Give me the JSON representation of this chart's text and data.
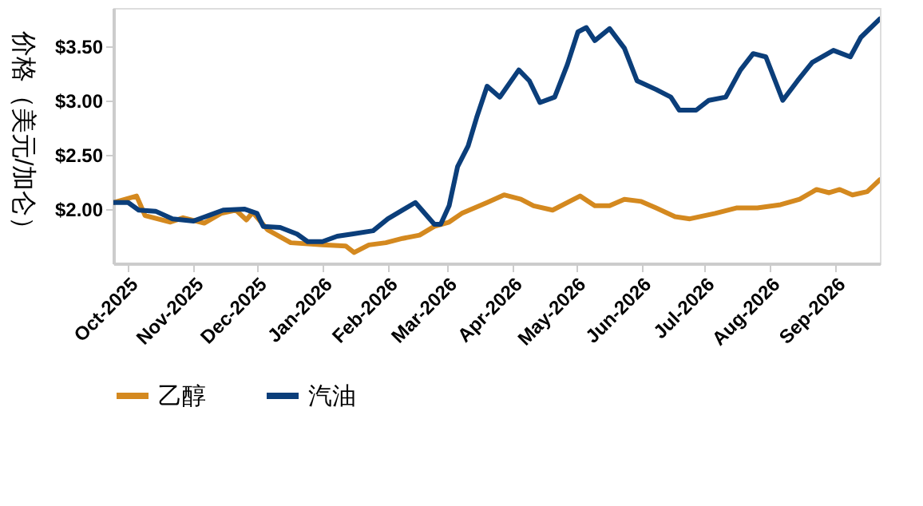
{
  "chart_data": {
    "type": "line",
    "ylabel": "价格（美元/加仑）",
    "xlim": [
      "2025-09-24",
      "2026-09-22"
    ],
    "ylim": [
      1.5,
      3.85
    ],
    "yticks": [
      {
        "value": 2,
        "label": "$2.00"
      },
      {
        "value": 2.5,
        "label": "$2.50"
      },
      {
        "value": 3,
        "label": "$3.00"
      },
      {
        "value": 3.5,
        "label": "$3.50"
      }
    ],
    "xticks": [
      {
        "value": "2025-10-01",
        "label": "Oct-2025"
      },
      {
        "value": "2025-11-01",
        "label": "Nov-2025"
      },
      {
        "value": "2025-12-01",
        "label": "Dec-2025"
      },
      {
        "value": "2026-01-01",
        "label": "Jan-2026"
      },
      {
        "value": "2026-02-01",
        "label": "Feb-2026"
      },
      {
        "value": "2026-03-01",
        "label": "Mar-2026"
      },
      {
        "value": "2026-04-01",
        "label": "Apr-2026"
      },
      {
        "value": "2026-05-01",
        "label": "May-2026"
      },
      {
        "value": "2026-06-01",
        "label": "Jun-2026"
      },
      {
        "value": "2026-07-01",
        "label": "Jul-2026"
      },
      {
        "value": "2026-08-01",
        "label": "Aug-2026"
      },
      {
        "value": "2026-09-01",
        "label": "Sep-2026"
      }
    ],
    "grid": false,
    "legend": "bottom",
    "marker": "none",
    "line_style": "solid",
    "series": [
      {
        "name": "乙醇",
        "color": "#d4891f",
        "x": [
          "2025-09-24",
          "2025-10-05",
          "2025-10-09",
          "2025-10-21",
          "2025-10-27",
          "2025-11-06",
          "2025-11-14",
          "2025-11-21",
          "2025-11-26",
          "2025-11-29",
          "2025-12-06",
          "2025-12-17",
          "2026-01-01",
          "2026-01-12",
          "2026-01-16",
          "2026-01-23",
          "2026-01-31",
          "2026-02-08",
          "2026-02-16",
          "2026-02-23",
          "2026-03-02",
          "2026-03-08",
          "2026-03-20",
          "2026-03-28",
          "2026-04-05",
          "2026-04-11",
          "2026-04-20",
          "2026-05-03",
          "2026-05-10",
          "2026-05-17",
          "2026-05-24",
          "2026-06-01",
          "2026-06-08",
          "2026-06-17",
          "2026-06-24",
          "2026-07-06",
          "2026-07-16",
          "2026-07-26",
          "2026-08-06",
          "2026-08-15",
          "2026-08-23",
          "2026-08-29",
          "2026-09-03",
          "2026-09-09",
          "2026-09-16",
          "2026-09-22"
        ],
        "values": [
          2.06,
          2.12,
          1.94,
          1.88,
          1.92,
          1.87,
          1.96,
          1.99,
          1.9,
          1.97,
          1.81,
          1.69,
          1.67,
          1.66,
          1.6,
          1.67,
          1.69,
          1.73,
          1.76,
          1.84,
          1.88,
          1.96,
          2.06,
          2.13,
          2.09,
          2.03,
          1.99,
          2.12,
          2.03,
          2.03,
          2.09,
          2.07,
          2.01,
          1.93,
          1.91,
          1.96,
          2.01,
          2.01,
          2.04,
          2.09,
          2.18,
          2.15,
          2.18,
          2.13,
          2.16,
          2.27
        ]
      },
      {
        "name": "汽油",
        "color": "#0b3e7a",
        "x": [
          "2025-09-24",
          "2025-10-01",
          "2025-10-06",
          "2025-10-14",
          "2025-10-22",
          "2025-11-01",
          "2025-11-08",
          "2025-11-15",
          "2025-11-25",
          "2025-12-01",
          "2025-12-04",
          "2025-12-12",
          "2025-12-20",
          "2025-12-25",
          "2026-01-01",
          "2026-01-08",
          "2026-01-15",
          "2026-01-25",
          "2026-02-01",
          "2026-02-14",
          "2026-02-23",
          "2026-02-26",
          "2026-03-02",
          "2026-03-06",
          "2026-03-11",
          "2026-03-15",
          "2026-03-20",
          "2026-03-26",
          "2026-04-04",
          "2026-04-09",
          "2026-04-14",
          "2026-04-21",
          "2026-04-27",
          "2026-05-02",
          "2026-05-06",
          "2026-05-10",
          "2026-05-17",
          "2026-05-24",
          "2026-05-30",
          "2026-06-08",
          "2026-06-15",
          "2026-06-19",
          "2026-06-27",
          "2026-07-03",
          "2026-07-11",
          "2026-07-18",
          "2026-07-24",
          "2026-07-30",
          "2026-08-07",
          "2026-08-14",
          "2026-08-21",
          "2026-08-31",
          "2026-09-08",
          "2026-09-13",
          "2026-09-22"
        ],
        "values": [
          2.06,
          2.06,
          1.99,
          1.98,
          1.91,
          1.89,
          1.94,
          1.99,
          2.0,
          1.96,
          1.84,
          1.83,
          1.77,
          1.7,
          1.7,
          1.75,
          1.77,
          1.8,
          1.91,
          2.06,
          1.86,
          1.86,
          2.03,
          2.39,
          2.58,
          2.84,
          3.13,
          3.03,
          3.28,
          3.18,
          2.98,
          3.03,
          3.33,
          3.63,
          3.67,
          3.55,
          3.66,
          3.48,
          3.18,
          3.1,
          3.03,
          2.91,
          2.91,
          3.0,
          3.03,
          3.28,
          3.43,
          3.4,
          3.0,
          3.18,
          3.35,
          3.46,
          3.4,
          3.58,
          3.75
        ]
      }
    ]
  }
}
